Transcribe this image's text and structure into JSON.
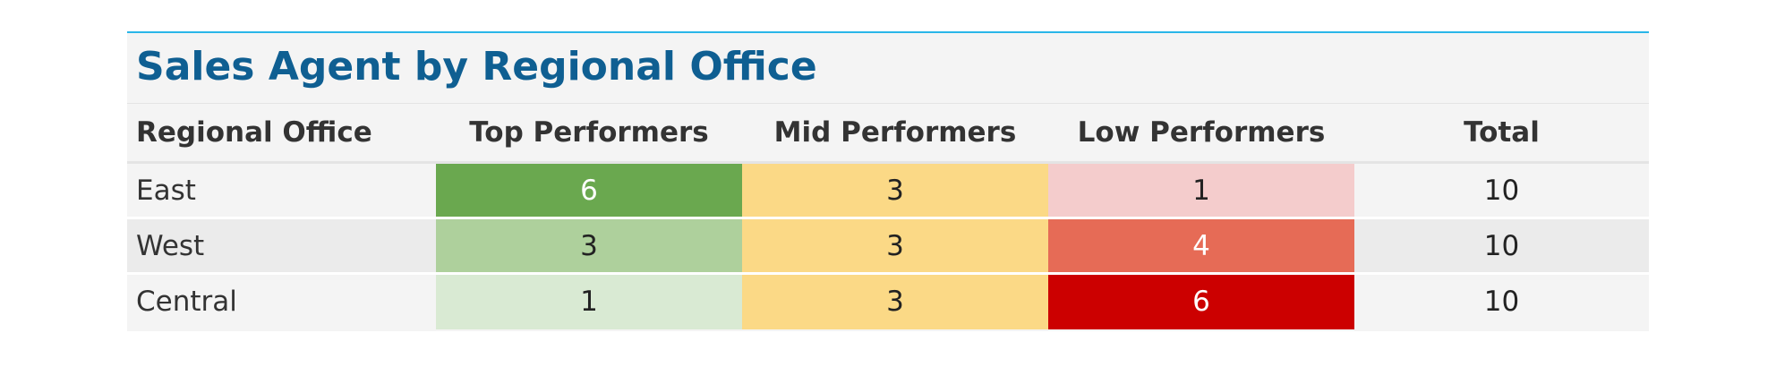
{
  "chart_data": {
    "type": "heatmap",
    "title": "Sales Agent by Regional Office",
    "columns": [
      "Regional Office",
      "Top Performers",
      "Mid Performers",
      "Low Performers",
      "Total"
    ],
    "rows": [
      {
        "office": "East",
        "top": 6,
        "mid": 3,
        "low": 1,
        "total": 10
      },
      {
        "office": "West",
        "top": 3,
        "mid": 3,
        "low": 4,
        "total": 10
      },
      {
        "office": "Central",
        "top": 1,
        "mid": 3,
        "low": 6,
        "total": 10
      }
    ],
    "cell_colors": {
      "top": {
        "6": "#6aa84f",
        "3": "#aed09c",
        "1": "#d9ead3"
      },
      "mid": {
        "3": "#fbd986"
      },
      "low": {
        "1": "#f4cccc",
        "4": "#e66b56",
        "6": "#cc0000"
      }
    },
    "cell_text_colors": {
      "top": {
        "6": "#ffffff",
        "3": "#222222",
        "1": "#222222"
      },
      "mid": {
        "3": "#222222"
      },
      "low": {
        "1": "#222222",
        "4": "#ffffff",
        "6": "#ffffff"
      }
    },
    "title_color": "#0f5f92",
    "accent_border": "#29b6e8"
  }
}
